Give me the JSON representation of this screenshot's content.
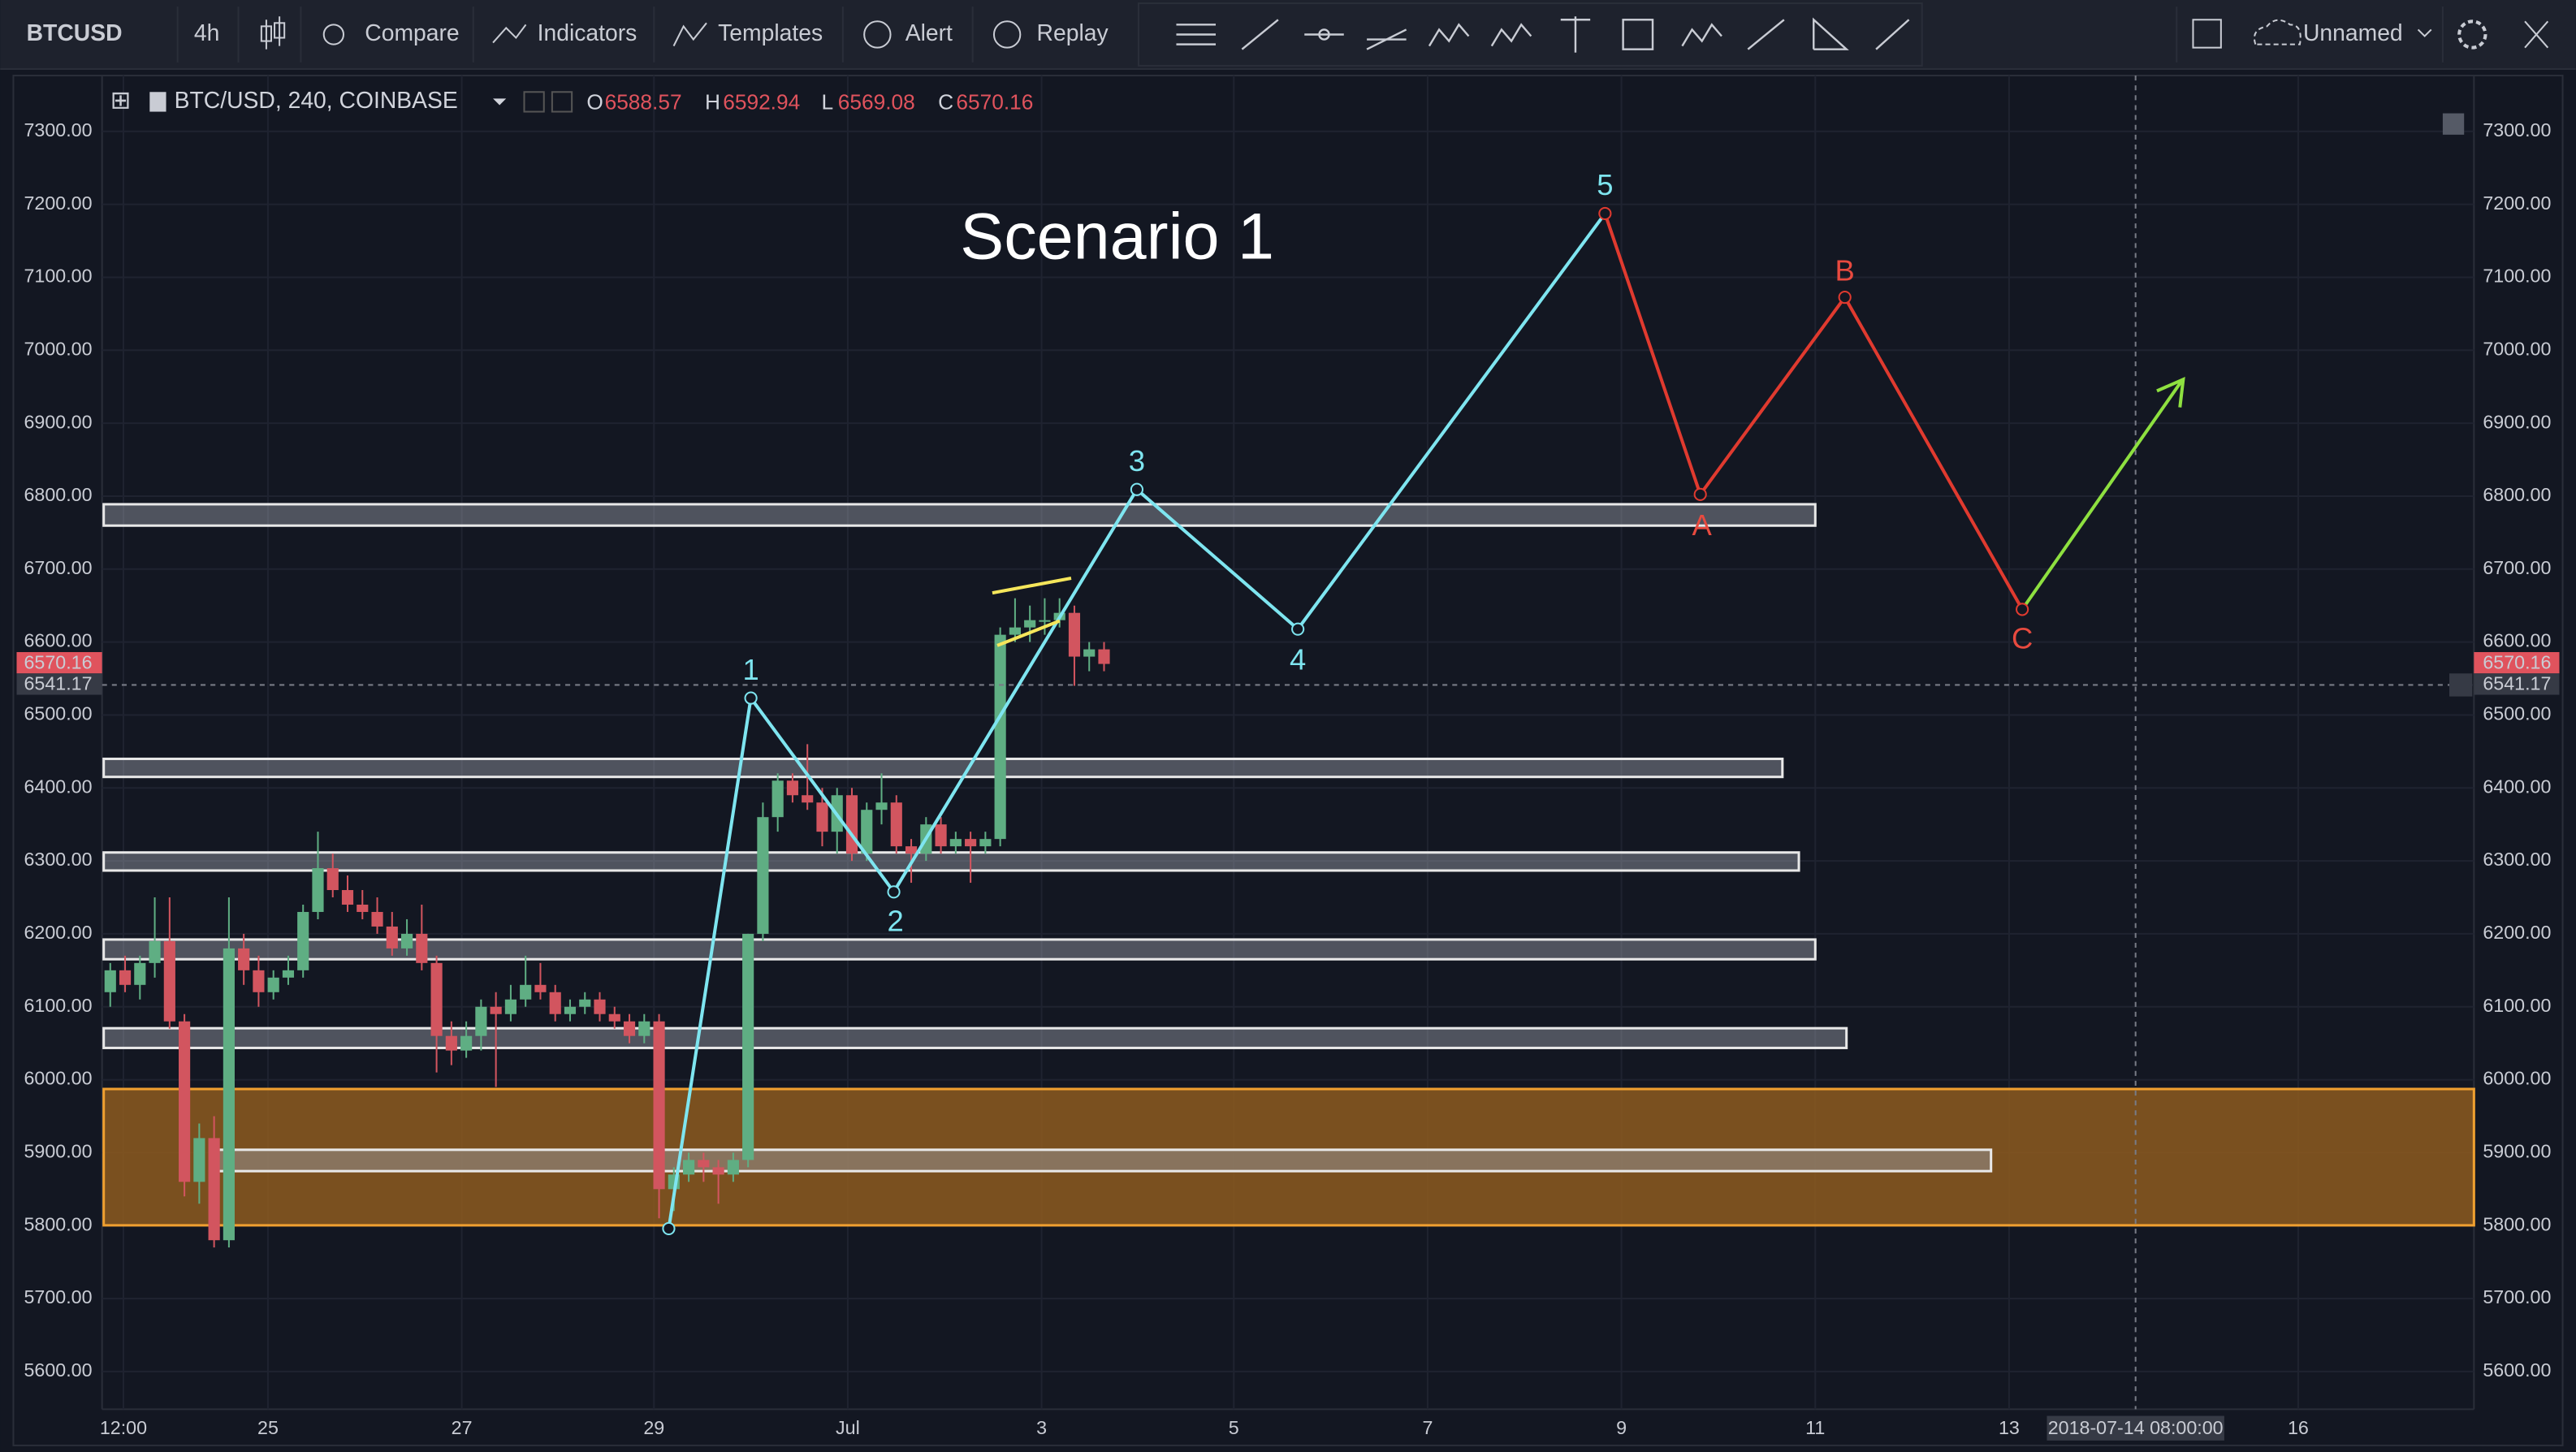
{
  "toolbar": {
    "symbol": "BTCUSD",
    "interval": "4h",
    "compare": "Compare",
    "indicators": "Indicators",
    "templates": "Templates",
    "alert": "Alert",
    "replay": "Replay",
    "layout": "Unnamed"
  },
  "legend": {
    "title": "BTC/USD, 240, COINBASE",
    "o_label": "O",
    "o": "6588.57",
    "h_label": "H",
    "h": "6592.94",
    "l_label": "L",
    "l": "6569.08",
    "c_label": "C",
    "c": "6570.16"
  },
  "price_tags": {
    "last": "6570.16",
    "cursor": "6541.17"
  },
  "time_labels": [
    "12:00",
    "25",
    "27",
    "29",
    "Jul",
    "3",
    "5",
    "7",
    "9",
    "11",
    "13",
    "16"
  ],
  "cursor_time": "2018-07-14 08:00:00",
  "annotations": {
    "title": "Scenario 1",
    "waves": [
      "1",
      "2",
      "3",
      "4",
      "5"
    ],
    "corrections": [
      "A",
      "B",
      "C"
    ]
  },
  "chart_data": {
    "type": "candlestick",
    "ylim": [
      5600,
      7300
    ],
    "yticks": [
      {
        "value": 5600,
        "label": "5600.00"
      },
      {
        "value": 5700,
        "label": "5700.00"
      },
      {
        "value": 5800,
        "label": "5800.00"
      },
      {
        "value": 5900,
        "label": "5900.00"
      },
      {
        "value": 6000,
        "label": "6000.00"
      },
      {
        "value": 6100,
        "label": "6100.00"
      },
      {
        "value": 6200,
        "label": "6200.00"
      },
      {
        "value": 6300,
        "label": "6300.00"
      },
      {
        "value": 6400,
        "label": "6400.00"
      },
      {
        "value": 6500,
        "label": "6500.00"
      },
      {
        "value": 6600,
        "label": "6600.00"
      },
      {
        "value": 6700,
        "label": "6700.00"
      },
      {
        "value": 6800,
        "label": "6800.00"
      },
      {
        "value": 6900,
        "label": "6900.00"
      },
      {
        "value": 7000,
        "label": "7000.00"
      },
      {
        "value": 7100,
        "label": "7100.00"
      },
      {
        "value": 7200,
        "label": "7200.00"
      },
      {
        "value": 7300,
        "label": "7300.00"
      }
    ],
    "up_color": "#5fae83",
    "down_color": "#d2555f",
    "candles": [
      [
        6120,
        6160,
        6100,
        6150
      ],
      [
        6150,
        6170,
        6120,
        6130
      ],
      [
        6130,
        6170,
        6110,
        6160
      ],
      [
        6160,
        6250,
        6140,
        6190
      ],
      [
        6190,
        6250,
        6070,
        6080
      ],
      [
        6080,
        6090,
        5840,
        5860
      ],
      [
        5860,
        5940,
        5830,
        5920
      ],
      [
        5920,
        5950,
        5770,
        5780
      ],
      [
        5780,
        6250,
        5770,
        6180
      ],
      [
        6180,
        6200,
        6130,
        6150
      ],
      [
        6150,
        6170,
        6100,
        6120
      ],
      [
        6120,
        6150,
        6110,
        6140
      ],
      [
        6140,
        6170,
        6130,
        6150
      ],
      [
        6150,
        6240,
        6140,
        6230
      ],
      [
        6230,
        6340,
        6220,
        6290
      ],
      [
        6290,
        6310,
        6250,
        6260
      ],
      [
        6260,
        6280,
        6230,
        6240
      ],
      [
        6240,
        6260,
        6220,
        6230
      ],
      [
        6230,
        6250,
        6200,
        6210
      ],
      [
        6210,
        6230,
        6170,
        6180
      ],
      [
        6180,
        6220,
        6170,
        6200
      ],
      [
        6200,
        6240,
        6150,
        6160
      ],
      [
        6160,
        6170,
        6010,
        6060
      ],
      [
        6060,
        6080,
        6020,
        6040
      ],
      [
        6040,
        6080,
        6030,
        6060
      ],
      [
        6060,
        6110,
        6040,
        6100
      ],
      [
        6100,
        6120,
        5990,
        6090
      ],
      [
        6090,
        6130,
        6080,
        6110
      ],
      [
        6110,
        6170,
        6100,
        6130
      ],
      [
        6130,
        6160,
        6110,
        6120
      ],
      [
        6120,
        6130,
        6080,
        6090
      ],
      [
        6090,
        6110,
        6080,
        6100
      ],
      [
        6100,
        6120,
        6090,
        6110
      ],
      [
        6110,
        6120,
        6080,
        6090
      ],
      [
        6090,
        6100,
        6070,
        6080
      ],
      [
        6080,
        6090,
        6050,
        6060
      ],
      [
        6060,
        6090,
        6050,
        6080
      ],
      [
        6080,
        6090,
        5810,
        5850
      ],
      [
        5850,
        5880,
        5820,
        5870
      ],
      [
        5870,
        5900,
        5860,
        5890
      ],
      [
        5890,
        5900,
        5860,
        5880
      ],
      [
        5880,
        5890,
        5830,
        5870
      ],
      [
        5870,
        5900,
        5860,
        5890
      ],
      [
        5890,
        6200,
        5880,
        6200
      ],
      [
        6200,
        6380,
        6190,
        6360
      ],
      [
        6360,
        6420,
        6340,
        6410
      ],
      [
        6410,
        6420,
        6380,
        6390
      ],
      [
        6390,
        6460,
        6370,
        6380
      ],
      [
        6380,
        6400,
        6320,
        6340
      ],
      [
        6340,
        6400,
        6310,
        6390
      ],
      [
        6390,
        6400,
        6300,
        6310
      ],
      [
        6310,
        6380,
        6300,
        6370
      ],
      [
        6370,
        6420,
        6350,
        6380
      ],
      [
        6380,
        6390,
        6310,
        6320
      ],
      [
        6320,
        6330,
        6270,
        6310
      ],
      [
        6310,
        6360,
        6300,
        6350
      ],
      [
        6350,
        6360,
        6310,
        6320
      ],
      [
        6320,
        6340,
        6310,
        6330
      ],
      [
        6330,
        6340,
        6270,
        6320
      ],
      [
        6320,
        6340,
        6310,
        6330
      ],
      [
        6330,
        6620,
        6320,
        6610
      ],
      [
        6610,
        6660,
        6600,
        6620
      ],
      [
        6620,
        6650,
        6600,
        6630
      ],
      [
        6630,
        6660,
        6610,
        6630
      ],
      [
        6630,
        6660,
        6620,
        6640
      ],
      [
        6640,
        6650,
        6540,
        6580
      ],
      [
        6580,
        6600,
        6560,
        6590
      ],
      [
        6590,
        6600,
        6560,
        6570
      ]
    ]
  }
}
